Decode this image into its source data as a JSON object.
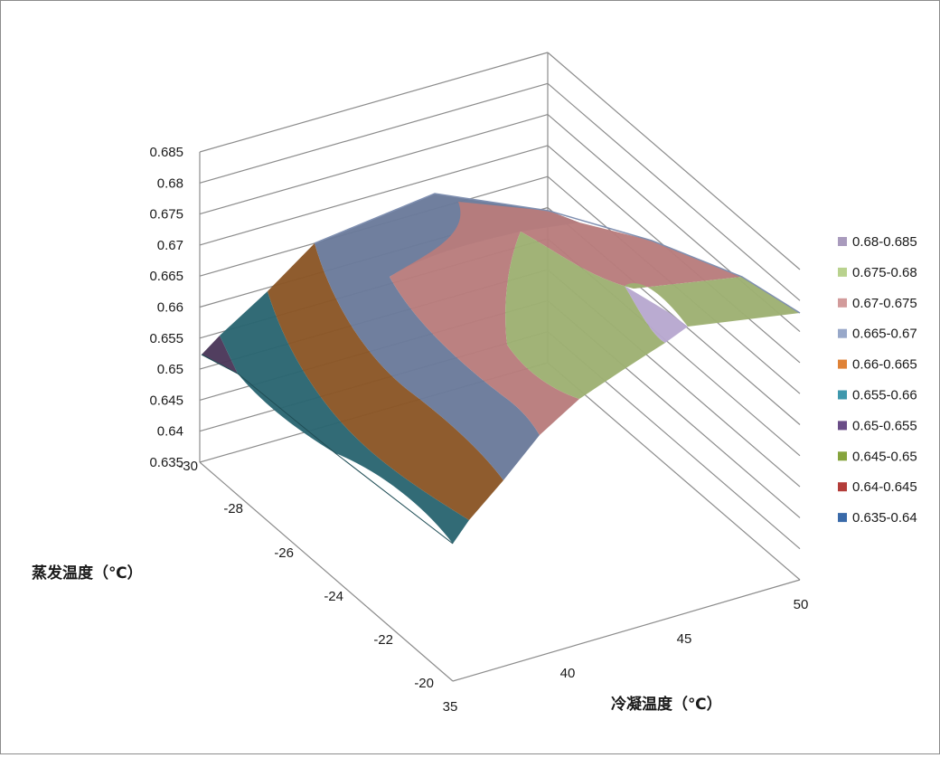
{
  "chart_data": {
    "type": "surface",
    "title": "",
    "xlabel": "冷凝温度（℃）",
    "ylabel": "蒸发温度（℃）",
    "zlabel": "",
    "x_ticks": [
      "35",
      "40",
      "45",
      "50"
    ],
    "y_ticks": [
      "-20",
      "-22",
      "-24",
      "-26",
      "-28",
      "-30"
    ],
    "z_ticks": [
      "0.635",
      "0.64",
      "0.645",
      "0.65",
      "0.655",
      "0.66",
      "0.665",
      "0.67",
      "0.675",
      "0.68",
      "0.685"
    ],
    "zlim": [
      0.635,
      0.685
    ],
    "grid": true,
    "legend_position": "right",
    "legend": [
      {
        "label": "0.68-0.685",
        "color": "#a99bbd"
      },
      {
        "label": "0.675-0.68",
        "color": "#b9d28e"
      },
      {
        "label": "0.67-0.675",
        "color": "#d29b9b"
      },
      {
        "label": "0.665-0.67",
        "color": "#98a8c9"
      },
      {
        "label": "0.66-0.665",
        "color": "#df8236"
      },
      {
        "label": "0.655-0.66",
        "color": "#3f98ad"
      },
      {
        "label": "0.65-0.655",
        "color": "#6a4d87"
      },
      {
        "label": "0.645-0.65",
        "color": "#86a43d"
      },
      {
        "label": "0.64-0.645",
        "color": "#b33c39"
      },
      {
        "label": "0.635-0.64",
        "color": "#3a6aa9"
      }
    ],
    "bands": [
      {
        "range": "0.65-0.655",
        "color": "#4a3658"
      },
      {
        "range": "0.655-0.66",
        "color": "#2a6570"
      },
      {
        "range": "0.66-0.665",
        "color": "#8a5525"
      },
      {
        "range": "0.665-0.67",
        "color": "#6a7a9a"
      },
      {
        "range": "0.67-0.675",
        "color": "#b87c7c"
      },
      {
        "range": "0.675-0.68",
        "color": "#9db071"
      },
      {
        "range": "0.68-0.685",
        "color": "#b7a8cf"
      }
    ]
  }
}
